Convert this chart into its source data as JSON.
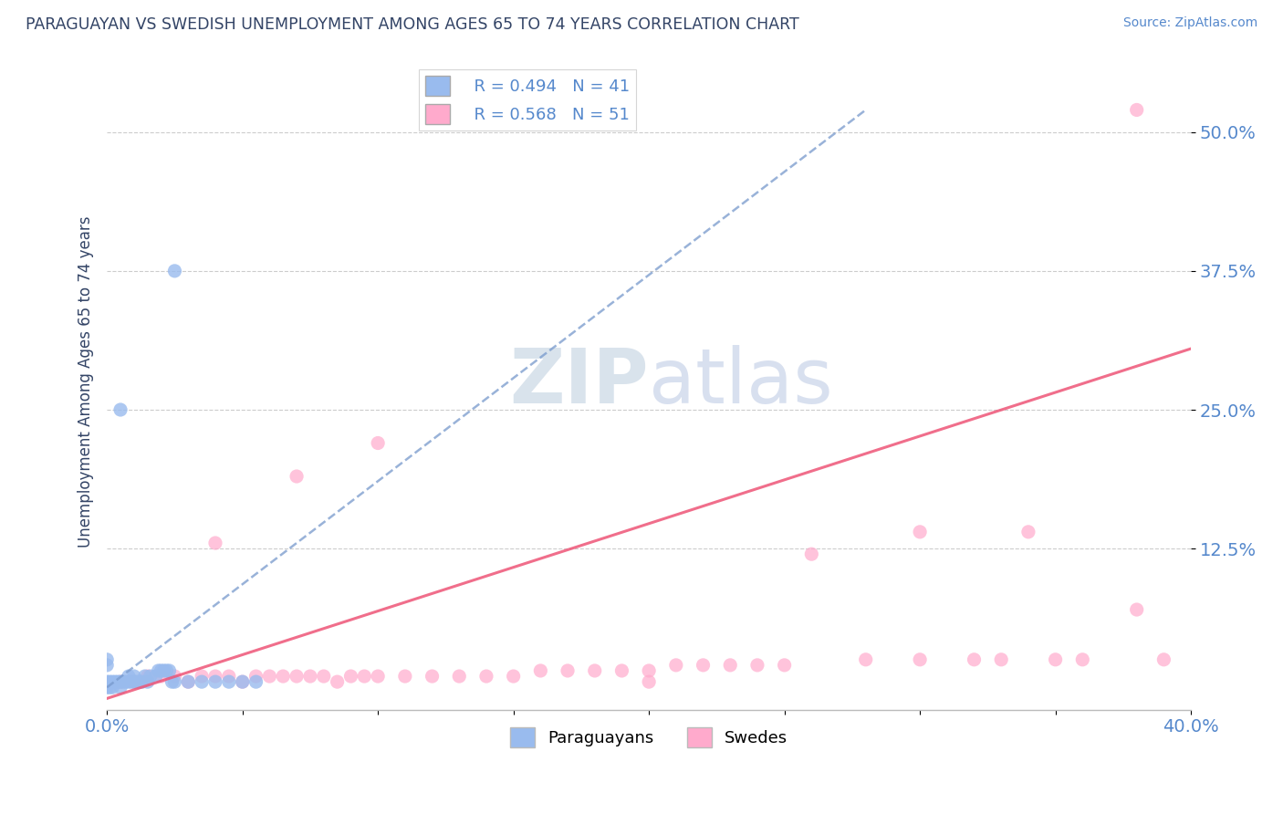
{
  "title": "PARAGUAYAN VS SWEDISH UNEMPLOYMENT AMONG AGES 65 TO 74 YEARS CORRELATION CHART",
  "source_text": "Source: ZipAtlas.com",
  "ylabel": "Unemployment Among Ages 65 to 74 years",
  "ytick_labels": [
    "50.0%",
    "37.5%",
    "25.0%",
    "12.5%"
  ],
  "ytick_values": [
    0.5,
    0.375,
    0.25,
    0.125
  ],
  "xlim": [
    0.0,
    0.4
  ],
  "ylim": [
    -0.02,
    0.57
  ],
  "legend_R_paraguayan": "R = 0.494",
  "legend_N_paraguayan": "N = 41",
  "legend_R_swedish": "R = 0.568",
  "legend_N_swedish": "N = 51",
  "paraguayan_color": "#99bbee",
  "swedish_color": "#ffaacc",
  "paraguayan_line_color": "#7799cc",
  "swedish_line_color": "#ee5577",
  "watermark_zip": "ZIP",
  "watermark_atlas": "atlas",
  "watermark_zip_color": "#bbccdd",
  "watermark_atlas_color": "#aabbdd",
  "paraguayan_scatter": [
    [
      0.0,
      0.0
    ],
    [
      0.0,
      0.005
    ],
    [
      0.001,
      0.005
    ],
    [
      0.002,
      0.005
    ],
    [
      0.003,
      0.005
    ],
    [
      0.004,
      0.005
    ],
    [
      0.005,
      0.0
    ],
    [
      0.005,
      0.005
    ],
    [
      0.006,
      0.005
    ],
    [
      0.007,
      0.005
    ],
    [
      0.008,
      0.005
    ],
    [
      0.008,
      0.01
    ],
    [
      0.009,
      0.005
    ],
    [
      0.01,
      0.005
    ],
    [
      0.01,
      0.01
    ],
    [
      0.011,
      0.005
    ],
    [
      0.012,
      0.005
    ],
    [
      0.013,
      0.005
    ],
    [
      0.014,
      0.01
    ],
    [
      0.015,
      0.005
    ],
    [
      0.016,
      0.01
    ],
    [
      0.018,
      0.01
    ],
    [
      0.019,
      0.015
    ],
    [
      0.02,
      0.015
    ],
    [
      0.021,
      0.015
    ],
    [
      0.022,
      0.015
    ],
    [
      0.023,
      0.015
    ],
    [
      0.024,
      0.005
    ],
    [
      0.025,
      0.005
    ],
    [
      0.03,
      0.005
    ],
    [
      0.035,
      0.005
    ],
    [
      0.04,
      0.005
    ],
    [
      0.045,
      0.005
    ],
    [
      0.05,
      0.005
    ],
    [
      0.055,
      0.005
    ],
    [
      0.005,
      0.25
    ],
    [
      0.025,
      0.375
    ],
    [
      0.001,
      0.0
    ],
    [
      0.002,
      0.0
    ],
    [
      0.0,
      0.02
    ],
    [
      0.0,
      0.025
    ]
  ],
  "swedish_scatter": [
    [
      0.005,
      0.005
    ],
    [
      0.01,
      0.005
    ],
    [
      0.015,
      0.01
    ],
    [
      0.02,
      0.01
    ],
    [
      0.025,
      0.01
    ],
    [
      0.03,
      0.005
    ],
    [
      0.035,
      0.01
    ],
    [
      0.04,
      0.01
    ],
    [
      0.045,
      0.01
    ],
    [
      0.05,
      0.005
    ],
    [
      0.055,
      0.01
    ],
    [
      0.06,
      0.01
    ],
    [
      0.065,
      0.01
    ],
    [
      0.07,
      0.01
    ],
    [
      0.075,
      0.01
    ],
    [
      0.08,
      0.01
    ],
    [
      0.085,
      0.005
    ],
    [
      0.09,
      0.01
    ],
    [
      0.095,
      0.01
    ],
    [
      0.1,
      0.01
    ],
    [
      0.11,
      0.01
    ],
    [
      0.12,
      0.01
    ],
    [
      0.13,
      0.01
    ],
    [
      0.14,
      0.01
    ],
    [
      0.15,
      0.01
    ],
    [
      0.16,
      0.015
    ],
    [
      0.17,
      0.015
    ],
    [
      0.18,
      0.015
    ],
    [
      0.19,
      0.015
    ],
    [
      0.2,
      0.015
    ],
    [
      0.21,
      0.02
    ],
    [
      0.22,
      0.02
    ],
    [
      0.23,
      0.02
    ],
    [
      0.24,
      0.02
    ],
    [
      0.25,
      0.02
    ],
    [
      0.04,
      0.13
    ],
    [
      0.07,
      0.19
    ],
    [
      0.1,
      0.22
    ],
    [
      0.28,
      0.025
    ],
    [
      0.3,
      0.025
    ],
    [
      0.32,
      0.025
    ],
    [
      0.26,
      0.12
    ],
    [
      0.3,
      0.14
    ],
    [
      0.34,
      0.14
    ],
    [
      0.36,
      0.025
    ],
    [
      0.38,
      0.07
    ],
    [
      0.39,
      0.025
    ],
    [
      0.38,
      0.52
    ],
    [
      0.35,
      0.025
    ],
    [
      0.33,
      0.025
    ],
    [
      0.2,
      0.005
    ]
  ],
  "paraguayan_trendline_x": [
    0.0,
    0.28
  ],
  "paraguayan_trendline_y": [
    0.0,
    0.52
  ],
  "swedish_trendline_x": [
    0.0,
    0.4
  ],
  "swedish_trendline_y": [
    -0.01,
    0.305
  ],
  "background_color": "#ffffff",
  "grid_color": "#cccccc",
  "tick_label_color": "#5588cc",
  "title_color": "#334466",
  "axis_color": "#bbbbbb"
}
